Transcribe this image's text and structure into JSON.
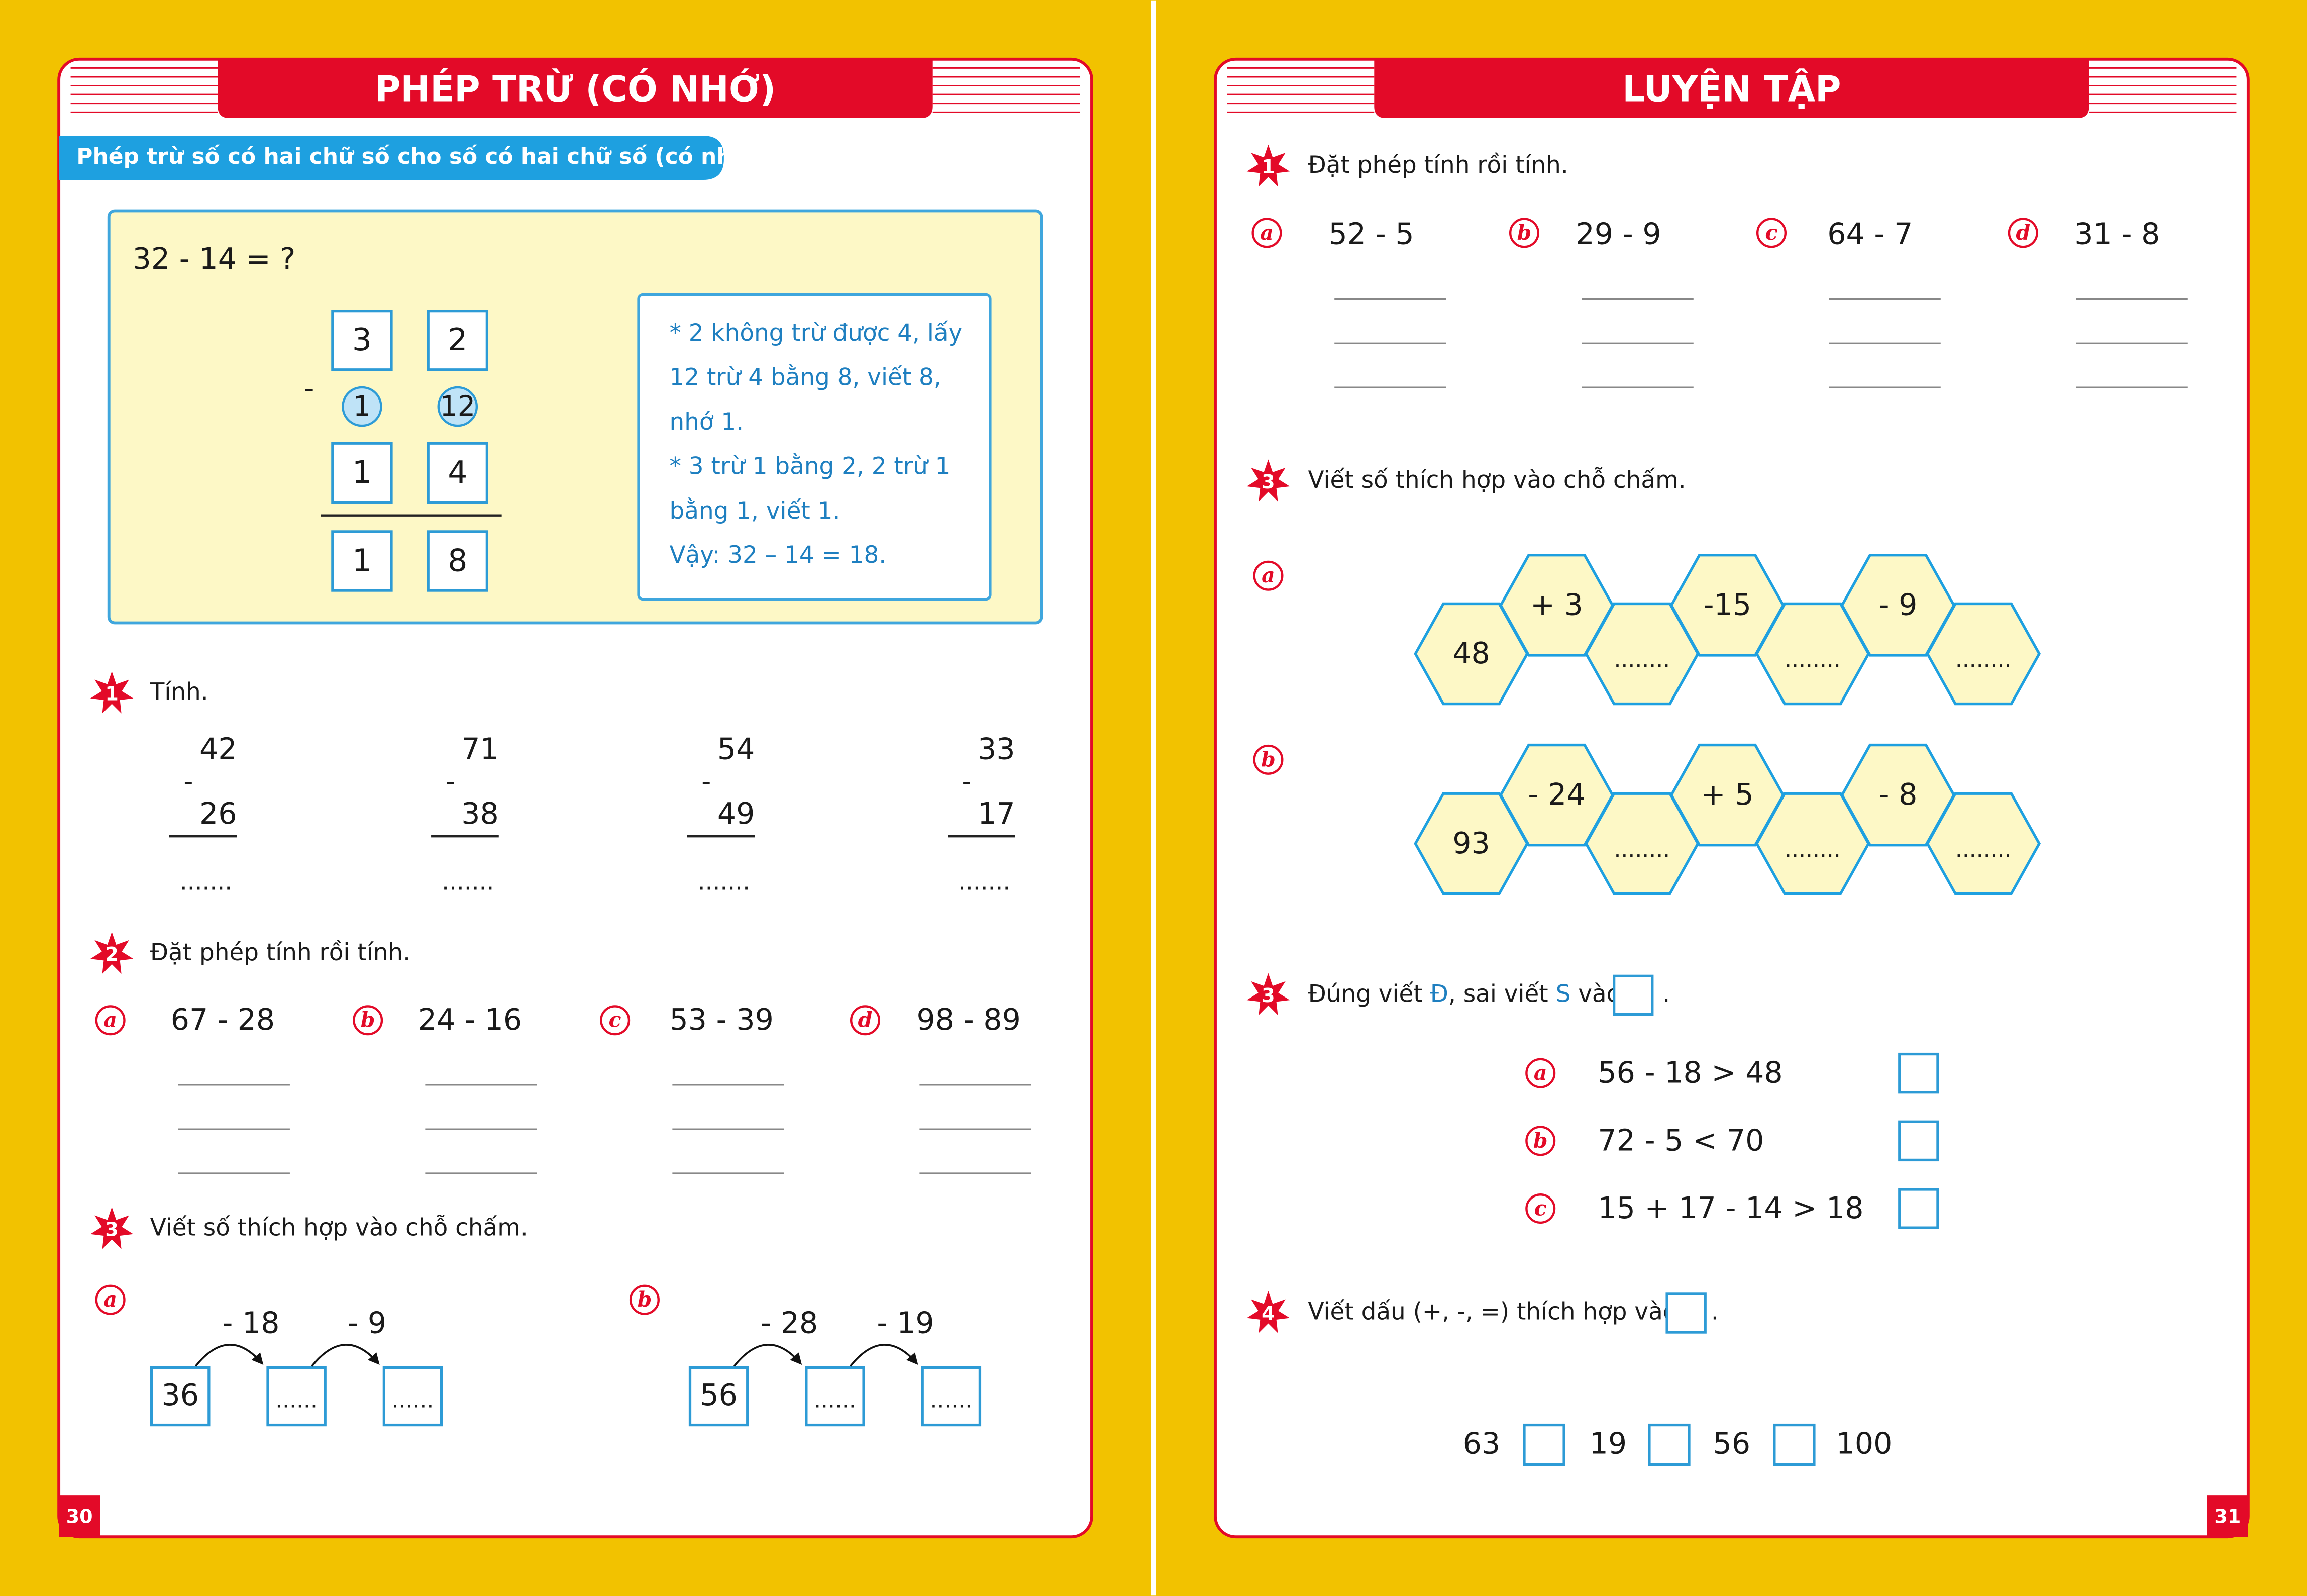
{
  "left_page": {
    "title": "PHÉP TRỪ (CÓ NHỚ)",
    "subtitle": "Phép trừ số có hai chữ số cho số có hai chữ số (có nhớ)",
    "example": {
      "equation": "32 - 14 = ?",
      "minus": "-",
      "rows": [
        [
          "3",
          "2"
        ],
        [
          "1",
          "12"
        ],
        [
          "1",
          "4"
        ],
        [
          "1",
          "8"
        ]
      ],
      "explanation": [
        "* 2 không trừ được 4, lấy",
        "12 trừ 4 bằng 8, viết 8,",
        "nhớ 1.",
        "* 3 trừ 1 bằng 2, 2 trừ 1",
        "bằng 1, viết 1.",
        "Vậy: 32 – 14 = 18."
      ]
    },
    "exercises": [
      {
        "number": "1",
        "instruction": "Tính.",
        "problems": [
          {
            "top": "42",
            "sign": "-",
            "bottom": "26",
            "answer": "......."
          },
          {
            "top": "71",
            "sign": "-",
            "bottom": "38",
            "answer": "......."
          },
          {
            "top": "54",
            "sign": "-",
            "bottom": "49",
            "answer": "......."
          },
          {
            "top": "33",
            "sign": "-",
            "bottom": "17",
            "answer": "......."
          }
        ]
      },
      {
        "number": "2",
        "instruction": "Đặt phép tính rồi tính.",
        "items": [
          {
            "letter": "a",
            "expression": "67 - 28"
          },
          {
            "letter": "b",
            "expression": "24 - 16"
          },
          {
            "letter": "c",
            "expression": "53 - 39"
          },
          {
            "letter": "d",
            "expression": "98 - 89"
          }
        ]
      },
      {
        "number": "3",
        "instruction": "Viết số thích hợp vào chỗ chấm.",
        "parts": [
          {
            "letter": "a",
            "start": "36",
            "steps": [
              "- 18",
              "- 9"
            ],
            "blanks": [
              "......",
              "......"
            ]
          },
          {
            "letter": "b",
            "start": "56",
            "steps": [
              "- 28",
              "- 19"
            ],
            "blanks": [
              "......",
              "......"
            ]
          }
        ]
      }
    ],
    "page_number": "30"
  },
  "right_page": {
    "title": "LUYỆN TẬP",
    "exercises": [
      {
        "number": "1",
        "instruction": "Đặt phép tính rồi tính.",
        "items": [
          {
            "letter": "a",
            "expression": "52 - 5"
          },
          {
            "letter": "b",
            "expression": "29 - 9"
          },
          {
            "letter": "c",
            "expression": "64 - 7"
          },
          {
            "letter": "d",
            "expression": "31 - 8"
          }
        ]
      },
      {
        "number": "3",
        "instruction": "Viết số thích hợp vào chỗ chấm.",
        "parts": [
          {
            "letter": "a",
            "start": "48",
            "operations": [
              "+ 3",
              "-15",
              "- 9"
            ],
            "blanks": [
              "........",
              "........",
              "........"
            ]
          },
          {
            "letter": "b",
            "start": "93",
            "operations": [
              "- 24",
              "+ 5",
              "- 8"
            ],
            "blanks": [
              "........",
              "........",
              "........"
            ]
          }
        ]
      },
      {
        "number": "3",
        "instruction": [
          "Đúng viết ",
          "Đ",
          ", sai viết ",
          "S",
          " vào"
        ],
        "end": ".",
        "items": [
          {
            "letter": "a",
            "statement": "56 - 18 > 48"
          },
          {
            "letter": "b",
            "statement": "72 - 5 < 70"
          },
          {
            "letter": "c",
            "statement": "15 + 17 - 14 > 18"
          }
        ]
      },
      {
        "number": "4",
        "instruction": "Viết dấu (+, -, =) thích hợp vào",
        "end": ".",
        "numbers": [
          "63",
          "19",
          "56",
          "100"
        ]
      }
    ],
    "page_number": "31"
  }
}
